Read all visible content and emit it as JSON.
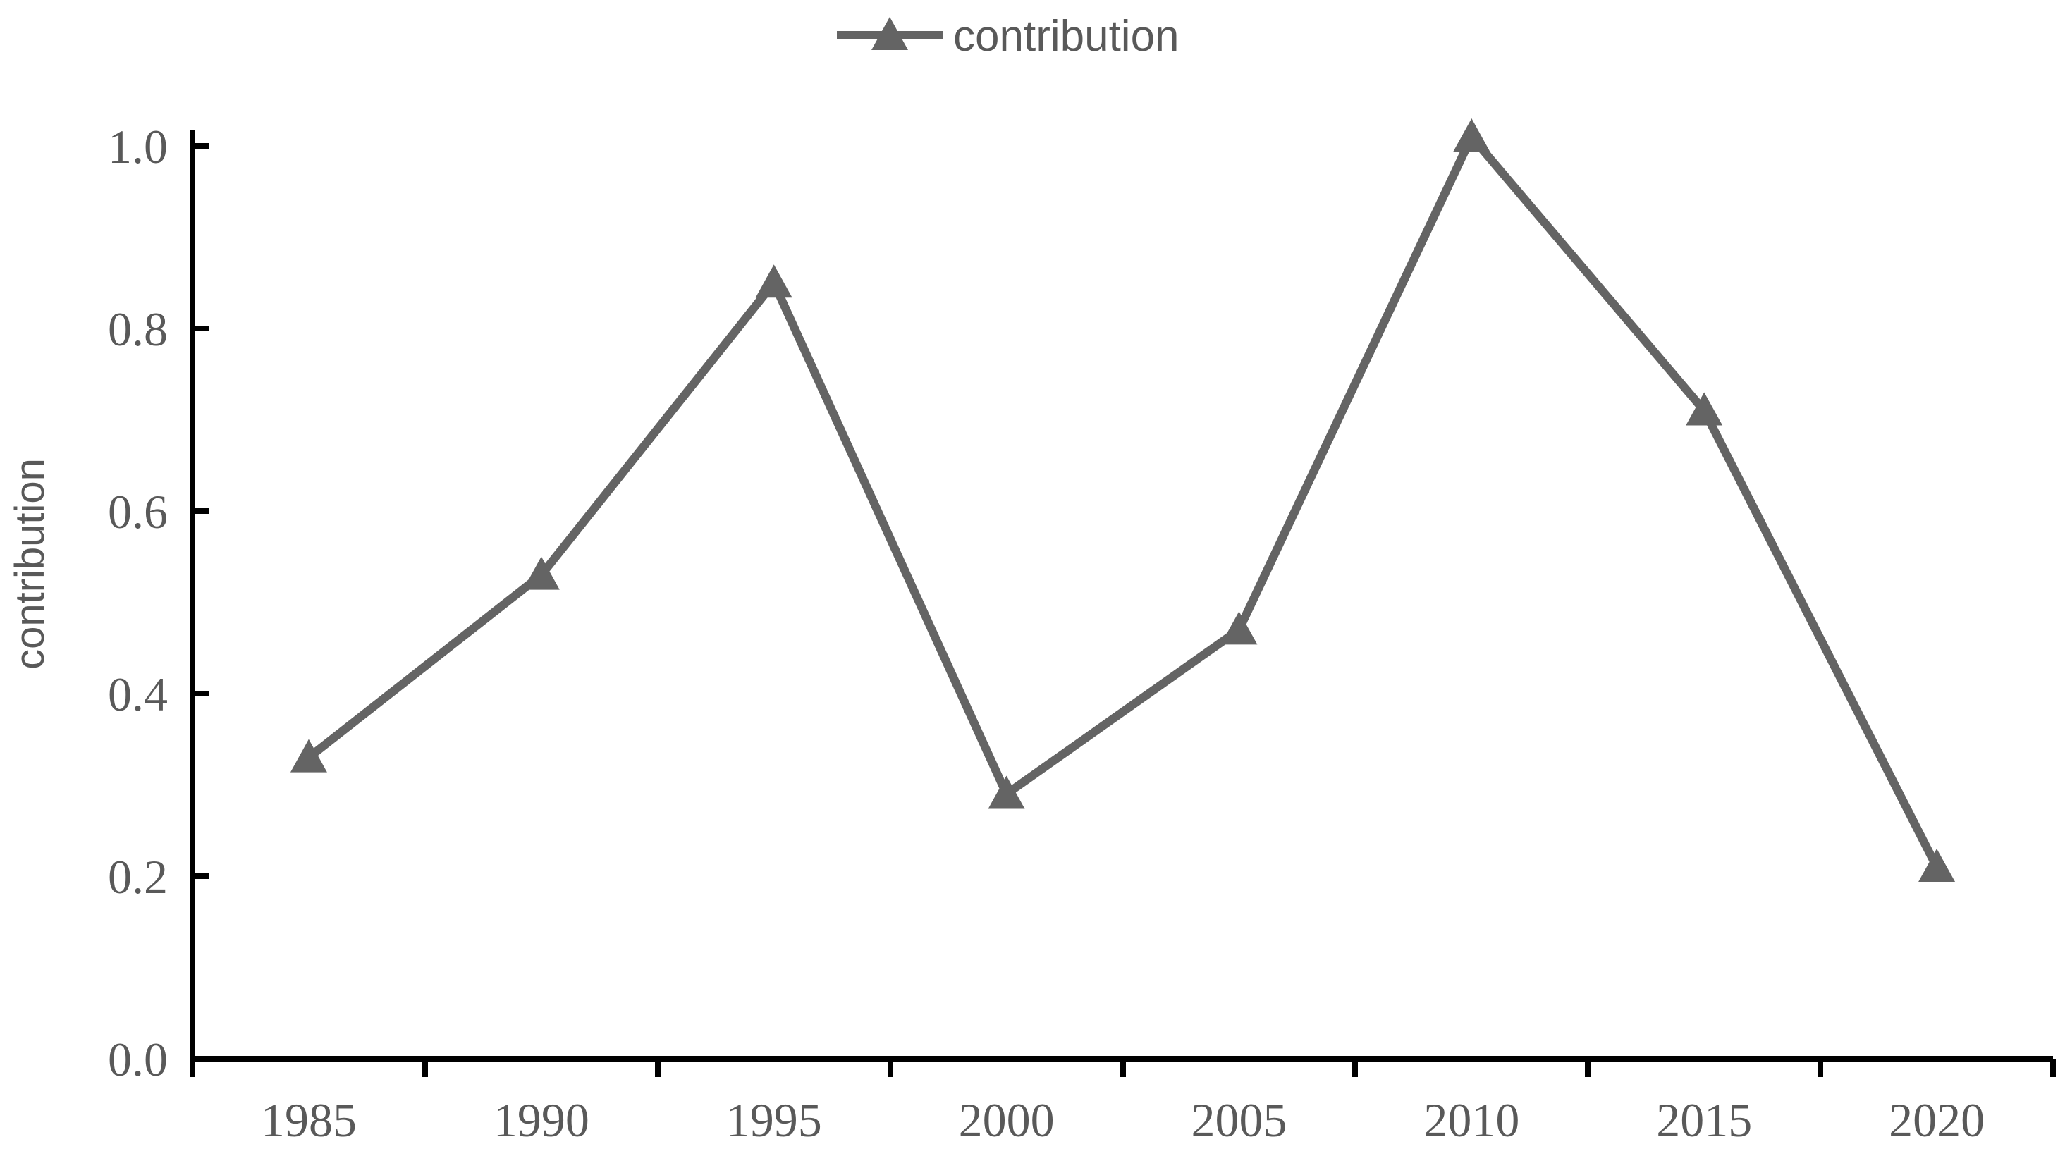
{
  "chart_data": {
    "type": "line",
    "title": "",
    "xlabel": "",
    "ylabel": "contribution",
    "categories": [
      "1985",
      "1990",
      "1995",
      "2000",
      "2005",
      "2010",
      "2015",
      "2020"
    ],
    "series": [
      {
        "name": "contribution",
        "values": [
          0.33,
          0.53,
          0.85,
          0.29,
          0.47,
          1.01,
          0.71,
          0.21
        ]
      }
    ],
    "yticks": [
      0.0,
      0.2,
      0.4,
      0.6,
      0.8,
      1.0
    ],
    "ytick_labels": [
      "0.0",
      "0.2",
      "0.4",
      "0.6",
      "0.8",
      "1.0"
    ],
    "ylim": [
      0.0,
      1.02
    ],
    "grid": false,
    "marker": "triangle",
    "legend_position": "top-center",
    "colors": {
      "series": "#646464",
      "text": "#595959",
      "axis": "#000000",
      "background": "#ffffff"
    }
  }
}
